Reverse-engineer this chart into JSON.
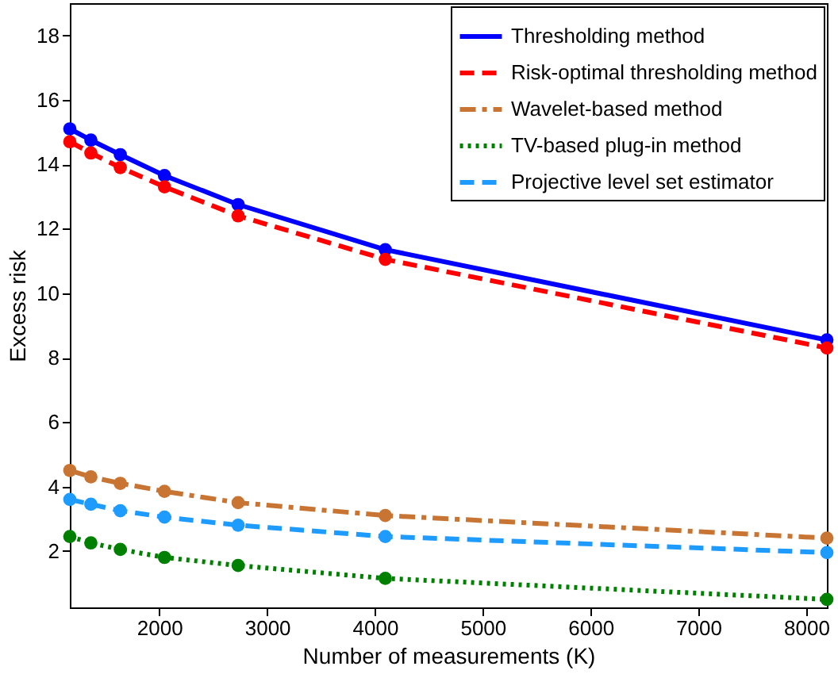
{
  "chart_data": {
    "type": "line",
    "xlabel": "Number of measurements (K)",
    "ylabel": "Excess risk",
    "x": [
      1170,
      1365,
      1638,
      2048,
      2731,
      4096,
      8192
    ],
    "series": [
      {
        "name": "Thresholding method",
        "color": "#0000ff",
        "line_style": "solid",
        "values": [
          15.1,
          14.75,
          14.3,
          13.65,
          12.75,
          11.35,
          8.55
        ]
      },
      {
        "name": "Risk-optimal thresholding method",
        "color": "#ff0000",
        "line_style": "dashed",
        "values": [
          14.7,
          14.35,
          13.9,
          13.3,
          12.4,
          11.05,
          8.3
        ]
      },
      {
        "name": "Wavelet-based method",
        "color": "#c87533",
        "line_style": "dashdot",
        "values": [
          4.5,
          4.3,
          4.1,
          3.85,
          3.5,
          3.1,
          2.4
        ]
      },
      {
        "name": "TV-based plug-in method",
        "color": "#008000",
        "line_style": "dotted",
        "values": [
          2.45,
          2.25,
          2.05,
          1.8,
          1.55,
          1.15,
          0.5
        ]
      },
      {
        "name": "Projective level set estimator",
        "color": "#1e9bff",
        "line_style": "dashed",
        "values": [
          3.6,
          3.45,
          3.25,
          3.05,
          2.8,
          2.45,
          1.95
        ]
      }
    ],
    "xlim": [
      1170,
      8192
    ],
    "xticks": [
      2000,
      3000,
      4000,
      5000,
      6000,
      7000,
      8000
    ],
    "ylim": [
      0.25,
      19
    ],
    "yticks": [
      2,
      4,
      6,
      8,
      10,
      12,
      14,
      16,
      18
    ],
    "grid": false,
    "legend": "top right",
    "marker": "circle"
  }
}
